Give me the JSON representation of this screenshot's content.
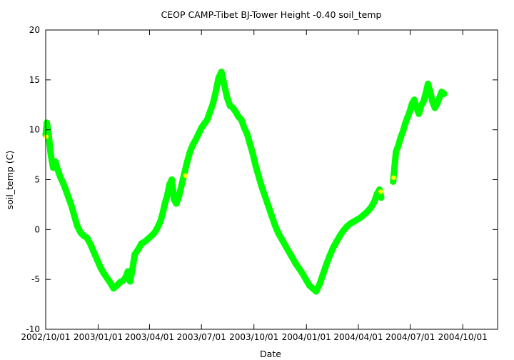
{
  "chart_data": {
    "type": "scatter",
    "title": "CEOP CAMP-Tibet BJ-Tower Height -0.40 soil_temp",
    "xlabel": "Date",
    "ylabel": "soil_temp (C)",
    "xlim": [
      "2002-10-01",
      "2004-12-01"
    ],
    "ylim": [
      -10,
      20
    ],
    "x_ticks": [
      "2002/10/01",
      "2003/01/01",
      "2003/04/01",
      "2003/07/01",
      "2003/10/01",
      "2004/01/01",
      "2004/04/01",
      "2004/07/01",
      "2004/10/01"
    ],
    "y_ticks": [
      -10,
      -5,
      0,
      5,
      10,
      15,
      20
    ],
    "grid": false,
    "colors": {
      "main_series": "#00ff00",
      "highlight_points": "#ffff00"
    },
    "series": [
      {
        "color": "#00ff00",
        "x": [
          "2002-10-01",
          "2002-10-03",
          "2002-10-06",
          "2002-10-10",
          "2002-10-14",
          "2002-10-18",
          "2002-10-22",
          "2002-10-27",
          "2002-11-01",
          "2002-11-05",
          "2002-11-10",
          "2002-11-15",
          "2002-11-20",
          "2002-11-25",
          "2002-12-01",
          "2002-12-06",
          "2002-12-12",
          "2002-12-18",
          "2002-12-24",
          "2002-12-30",
          "2003-01-05",
          "2003-01-11",
          "2003-01-17",
          "2003-01-23",
          "2003-01-28",
          "2003-02-03",
          "2003-02-08",
          "2003-02-14",
          "2003-02-18",
          "2003-02-22",
          "2003-02-26",
          "2003-03-02",
          "2003-03-06",
          "2003-03-12",
          "2003-03-18",
          "2003-03-24",
          "2003-03-30",
          "2003-04-05",
          "2003-04-10",
          "2003-04-15",
          "2003-04-20",
          "2003-04-24",
          "2003-04-28",
          "2003-05-02",
          "2003-05-06",
          "2003-05-10",
          "2003-05-14",
          "2003-05-18",
          "2003-05-22",
          "2003-05-27",
          "2003-06-01",
          "2003-06-06",
          "2003-06-11",
          "2003-06-16",
          "2003-06-21",
          "2003-06-26",
          "2003-07-01",
          "2003-07-06",
          "2003-07-11",
          "2003-07-16",
          "2003-07-21",
          "2003-07-26",
          "2003-07-31",
          "2003-08-05",
          "2003-08-10",
          "2003-08-15",
          "2003-08-20",
          "2003-08-25",
          "2003-08-30",
          "2003-09-04",
          "2003-09-09",
          "2003-09-14",
          "2003-09-19",
          "2003-09-24",
          "2003-09-29",
          "2003-10-04",
          "2003-10-09",
          "2003-10-14",
          "2003-10-20",
          "2003-10-26",
          "2003-11-01",
          "2003-11-07",
          "2003-11-13",
          "2003-11-19",
          "2003-11-25",
          "2003-12-01",
          "2003-12-07",
          "2003-12-13",
          "2003-12-19",
          "2003-12-25",
          "2003-12-31",
          "2004-01-06",
          "2004-01-12",
          "2004-01-18",
          "2004-01-24",
          "2004-01-30",
          "2004-02-05",
          "2004-02-11",
          "2004-02-17",
          "2004-02-23",
          "2004-02-29",
          "2004-03-06",
          "2004-03-12",
          "2004-03-18",
          "2004-03-24",
          "2004-03-30",
          "2004-04-05",
          "2004-04-11",
          "2004-04-17",
          "2004-04-23",
          "2004-04-29",
          "2004-05-04",
          "2004-05-08",
          "2004-05-11"
        ],
        "y": [
          9.5,
          10.7,
          9.6,
          7.5,
          6.2,
          6.8,
          6.0,
          5.2,
          4.6,
          4.0,
          3.2,
          2.4,
          1.4,
          0.4,
          -0.3,
          -0.6,
          -0.8,
          -1.4,
          -2.2,
          -3.0,
          -3.8,
          -4.4,
          -4.9,
          -5.4,
          -5.9,
          -5.6,
          -5.3,
          -5.1,
          -4.8,
          -4.2,
          -5.2,
          -4.0,
          -2.5,
          -2.0,
          -1.4,
          -1.2,
          -0.9,
          -0.6,
          -0.3,
          0.2,
          0.8,
          1.6,
          2.6,
          3.4,
          4.5,
          5.0,
          3.0,
          2.6,
          3.2,
          4.4,
          5.6,
          6.8,
          7.8,
          8.5,
          9.0,
          9.6,
          10.2,
          10.6,
          11.0,
          11.8,
          12.6,
          13.8,
          15.2,
          15.8,
          14.5,
          13.2,
          12.4,
          12.2,
          11.8,
          11.3,
          11.0,
          10.2,
          9.6,
          8.6,
          7.6,
          6.4,
          5.4,
          4.4,
          3.4,
          2.4,
          1.4,
          0.4,
          -0.4,
          -1.0,
          -1.6,
          -2.2,
          -2.8,
          -3.4,
          -3.9,
          -4.4,
          -5.0,
          -5.6,
          -5.9,
          -6.2,
          -5.5,
          -4.5,
          -3.5,
          -2.6,
          -1.8,
          -1.2,
          -0.6,
          -0.1,
          0.3,
          0.6,
          0.8,
          1.0,
          1.2,
          1.5,
          1.8,
          2.2,
          2.8,
          3.6,
          4.0,
          3.2
        ]
      },
      {
        "color": "#00ff00",
        "x": [
          "2004-06-01",
          "2004-06-03",
          "2004-06-06",
          "2004-06-10",
          "2004-06-14",
          "2004-06-18",
          "2004-06-22",
          "2004-06-26",
          "2004-06-30",
          "2004-07-04",
          "2004-07-08",
          "2004-07-12",
          "2004-07-16",
          "2004-07-20",
          "2004-07-24",
          "2004-07-28",
          "2004-08-01",
          "2004-08-05",
          "2004-08-09",
          "2004-08-13",
          "2004-08-17",
          "2004-08-21",
          "2004-08-25",
          "2004-08-29"
        ],
        "y": [
          4.8,
          6.0,
          7.8,
          8.4,
          9.2,
          9.8,
          10.6,
          11.2,
          11.8,
          12.6,
          13.0,
          12.2,
          11.6,
          12.4,
          12.8,
          13.6,
          14.6,
          13.8,
          12.8,
          12.2,
          12.6,
          13.2,
          13.8,
          13.6
        ]
      },
      {
        "color": "#ffff00",
        "x": [
          "2002-10-02",
          "2003-06-03",
          "2004-05-10",
          "2004-06-02"
        ],
        "y": [
          9.3,
          5.4,
          3.8,
          5.2
        ]
      }
    ]
  }
}
